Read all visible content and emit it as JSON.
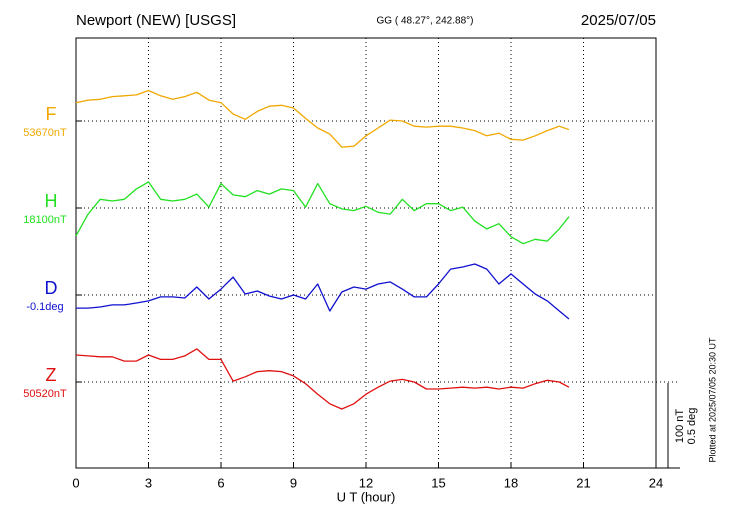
{
  "chart_data": {
    "type": "line",
    "title": "Newport (NEW)  [USGS]",
    "subtitle": "GG ( 48.27°, 242.88°)",
    "date": "2025/07/05",
    "xlabel": "U T (hour)",
    "footnote": "Plotted at 2025/07/05 20:30 UT",
    "xlim": [
      0,
      24
    ],
    "xticks": [
      0,
      3,
      6,
      9,
      12,
      15,
      18,
      21,
      24
    ],
    "grid": true,
    "yscale": {
      "value": 100,
      "label": "100 nT"
    },
    "y2scale": {
      "value": 0.5,
      "label": "0.5 deg"
    },
    "x": [
      0,
      0.5,
      1,
      1.5,
      2,
      2.5,
      3,
      3.5,
      4,
      4.5,
      5,
      5.5,
      6,
      6.5,
      7,
      7.5,
      8,
      8.5,
      9,
      9.5,
      10,
      10.5,
      11,
      11.5,
      12,
      12.5,
      13,
      13.5,
      14,
      14.5,
      15,
      15.5,
      16,
      16.5,
      17,
      17.5,
      18,
      18.5,
      19,
      19.5,
      20,
      20.4
    ],
    "series": [
      {
        "name": "F",
        "color": "#f0a800",
        "baseline": {
          "value": 53670,
          "label": "53670nT"
        },
        "values": [
          53691,
          53694,
          53695,
          53698,
          53699,
          53700,
          53705,
          53699,
          53695,
          53698,
          53703,
          53694,
          53691,
          53678,
          53672,
          53681,
          53687,
          53688,
          53685,
          53673,
          53662,
          53655,
          53640,
          53641,
          53653,
          53662,
          53671,
          53670,
          53664,
          53663,
          53664,
          53664,
          53662,
          53659,
          53653,
          53656,
          53649,
          53648,
          53653,
          53659,
          53664,
          53660
        ]
      },
      {
        "name": "H",
        "color": "#22e022",
        "baseline": {
          "value": 18100,
          "label": "18100nT"
        },
        "values": [
          18068,
          18093,
          18110,
          18108,
          18110,
          18122,
          18130,
          18110,
          18108,
          18110,
          18116,
          18101,
          18128,
          18115,
          18113,
          18120,
          18116,
          18122,
          18120,
          18101,
          18128,
          18105,
          18099,
          18097,
          18102,
          18095,
          18093,
          18110,
          18097,
          18105,
          18105,
          18097,
          18101,
          18085,
          18076,
          18082,
          18067,
          18059,
          18064,
          18062,
          18076,
          18090
        ]
      },
      {
        "name": "D",
        "color": "#1010d0",
        "axis": "y2",
        "baseline": {
          "value": -0.1,
          "label": "-0.1deg"
        },
        "values": [
          -0.175,
          -0.175,
          -0.169,
          -0.157,
          -0.157,
          -0.146,
          -0.134,
          -0.111,
          -0.111,
          -0.117,
          -0.054,
          -0.123,
          -0.066,
          0.003,
          -0.094,
          -0.077,
          -0.106,
          -0.123,
          -0.1,
          -0.123,
          -0.037,
          -0.192,
          -0.083,
          -0.054,
          -0.066,
          -0.037,
          -0.025,
          -0.066,
          -0.111,
          -0.111,
          -0.037,
          0.049,
          0.061,
          0.078,
          0.049,
          -0.037,
          0.021,
          -0.037,
          -0.094,
          -0.134,
          -0.192,
          -0.238
        ]
      },
      {
        "name": "Z",
        "color": "#e01010",
        "baseline": {
          "value": 50520,
          "label": "50520nT"
        },
        "values": [
          50551,
          50550,
          50549,
          50549,
          50544,
          50544,
          50551,
          50546,
          50546,
          50550,
          50558,
          50546,
          50546,
          50521,
          50526,
          50532,
          50533,
          50532,
          50527,
          50518,
          50506,
          50495,
          50489,
          50495,
          50506,
          50514,
          50521,
          50523,
          50520,
          50512,
          50512,
          50513,
          50514,
          50513,
          50514,
          50512,
          50514,
          50513,
          50518,
          50522,
          50520,
          50514
        ]
      }
    ]
  }
}
